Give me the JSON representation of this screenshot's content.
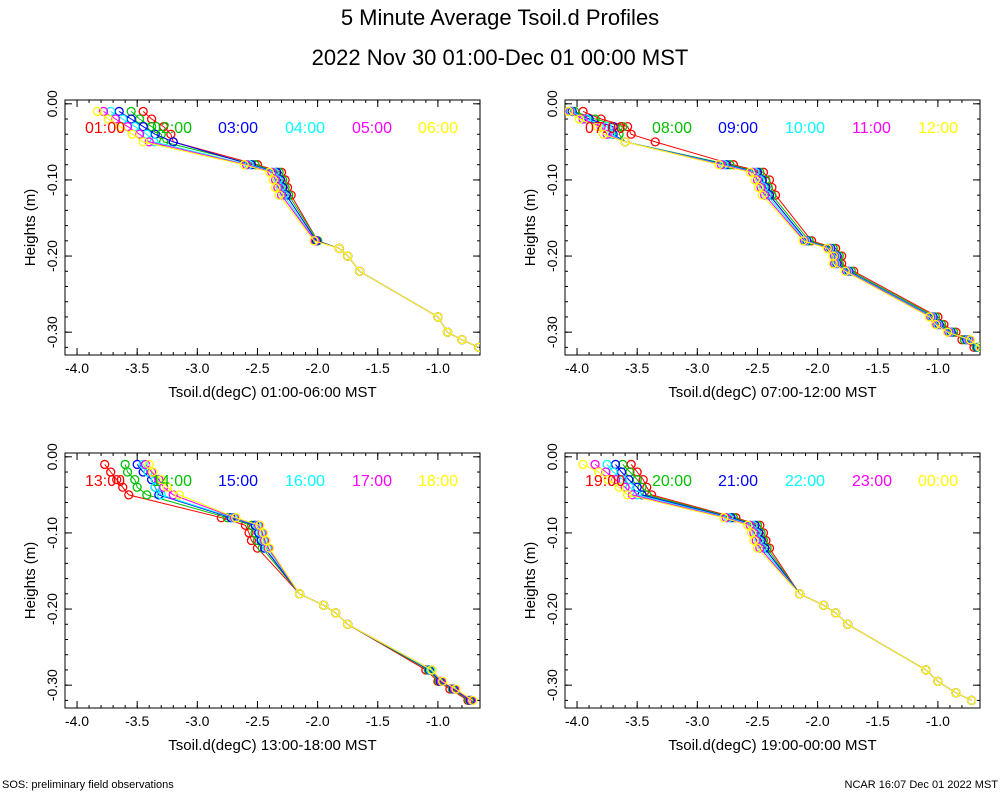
{
  "title": "5 Minute Average Tsoil.d Profiles",
  "subtitle": "2022 Nov 30 01:00-Dec 01 00:00 MST",
  "footer_left": "SOS: preliminary field observations",
  "footer_right": "NCAR 16:07 Dec 01 2022 MST",
  "colors": [
    "#ff0000",
    "#00c000",
    "#0000ff",
    "#00ffff",
    "#ff00ff",
    "#ffff00"
  ],
  "chart_data": [
    {
      "type": "line",
      "xlabel": "Tsoil.d(degC) 01:00-06:00 MST",
      "ylabel": "Heights (m)",
      "xlim": [
        -4.1,
        -0.65
      ],
      "ylim": [
        -0.33,
        0.005
      ],
      "xticks": [
        "-4.0",
        "-3.5",
        "-3.0",
        "-2.5",
        "-2.0",
        "-1.5",
        "-1.0"
      ],
      "yticks": [
        "0.00",
        "-0.10",
        "-0.20",
        "-0.30"
      ],
      "heights": [
        -0.01,
        -0.02,
        -0.03,
        -0.04,
        -0.05,
        -0.08,
        -0.09,
        -0.1,
        -0.11,
        -0.12,
        -0.18,
        -0.19,
        -0.2,
        -0.22,
        -0.28,
        -0.3,
        -0.31,
        -0.32
      ],
      "series": [
        {
          "name": "01:00",
          "x": [
            -3.45,
            -3.38,
            -3.28,
            -3.22,
            -3.2,
            -2.5,
            -2.3,
            -2.27,
            -2.25,
            -2.22,
            -2.0,
            -1.82,
            -1.75,
            -1.65,
            -1.0,
            -0.92,
            -0.8,
            -0.66
          ]
        },
        {
          "name": "02:00",
          "x": [
            -3.55,
            -3.48,
            -3.38,
            -3.3,
            -3.28,
            -2.52,
            -2.32,
            -2.29,
            -2.27,
            -2.24,
            -2.0,
            -1.82,
            -1.75,
            -1.65,
            -1.0,
            -0.92,
            -0.8,
            -0.66
          ]
        },
        {
          "name": "03:00",
          "x": [
            -3.65,
            -3.55,
            -3.45,
            -3.35,
            -3.2,
            -2.55,
            -2.34,
            -2.31,
            -2.29,
            -2.26,
            -2.01,
            -1.82,
            -1.75,
            -1.65,
            -1.0,
            -0.92,
            -0.8,
            -0.66
          ]
        },
        {
          "name": "04:00",
          "x": [
            -3.72,
            -3.62,
            -3.52,
            -3.42,
            -3.36,
            -2.57,
            -2.36,
            -2.33,
            -2.31,
            -2.28,
            -2.02,
            -1.82,
            -1.75,
            -1.65,
            -1.0,
            -0.92,
            -0.8,
            -0.66
          ]
        },
        {
          "name": "05:00",
          "x": [
            -3.78,
            -3.68,
            -3.58,
            -3.48,
            -3.4,
            -2.59,
            -2.38,
            -2.35,
            -2.33,
            -2.3,
            -2.02,
            -1.82,
            -1.75,
            -1.65,
            -1.0,
            -0.92,
            -0.8,
            -0.66
          ]
        },
        {
          "name": "06:00",
          "x": [
            -3.83,
            -3.74,
            -3.64,
            -3.54,
            -3.45,
            -2.61,
            -2.4,
            -2.37,
            -2.35,
            -2.32,
            -2.03,
            -1.82,
            -1.75,
            -1.65,
            -1.0,
            -0.92,
            -0.8,
            -0.66
          ]
        }
      ]
    },
    {
      "type": "line",
      "xlabel": "Tsoil.d(degC) 07:00-12:00 MST",
      "ylabel": "Heights (m)",
      "xlim": [
        -4.1,
        -0.65
      ],
      "ylim": [
        -0.33,
        0.005
      ],
      "xticks": [
        "-4.0",
        "-3.5",
        "-3.0",
        "-2.5",
        "-2.0",
        "-1.5",
        "-1.0"
      ],
      "yticks": [
        "0.00",
        "-0.10",
        "-0.20",
        "-0.30"
      ],
      "heights": [
        -0.01,
        -0.02,
        -0.03,
        -0.04,
        -0.05,
        -0.08,
        -0.09,
        -0.1,
        -0.11,
        -0.12,
        -0.18,
        -0.19,
        -0.2,
        -0.21,
        -0.22,
        -0.28,
        -0.29,
        -0.3,
        -0.31,
        -0.32
      ],
      "series": [
        {
          "name": "07:00",
          "x": [
            -3.95,
            -3.8,
            -3.58,
            -3.55,
            -3.35,
            -2.7,
            -2.45,
            -2.4,
            -2.38,
            -2.35,
            -2.05,
            -1.85,
            -1.8,
            -1.8,
            -1.7,
            -1.0,
            -0.95,
            -0.85,
            -0.8,
            -0.7
          ]
        },
        {
          "name": "08:00",
          "x": [
            -4.02,
            -3.85,
            -3.62,
            -3.65,
            -3.6,
            -2.73,
            -2.48,
            -2.43,
            -2.41,
            -2.38,
            -2.07,
            -1.87,
            -1.82,
            -1.82,
            -1.72,
            -1.02,
            -0.97,
            -0.87,
            -0.78,
            -0.68
          ]
        },
        {
          "name": "09:00",
          "x": [
            -4.04,
            -3.9,
            -3.7,
            -3.7,
            -3.6,
            -2.76,
            -2.5,
            -2.46,
            -2.43,
            -2.4,
            -2.09,
            -1.89,
            -1.84,
            -1.84,
            -1.74,
            -1.04,
            -0.99,
            -0.89,
            -0.76,
            -0.67
          ]
        },
        {
          "name": "10:00",
          "x": [
            -4.05,
            -3.92,
            -3.75,
            -3.72,
            -3.6,
            -2.78,
            -2.52,
            -2.48,
            -2.45,
            -2.42,
            -2.1,
            -1.9,
            -1.85,
            -1.85,
            -1.75,
            -1.05,
            -1.0,
            -0.9,
            -0.75,
            -0.66
          ]
        },
        {
          "name": "11:00",
          "x": [
            -4.06,
            -3.95,
            -3.8,
            -3.75,
            -3.6,
            -2.8,
            -2.54,
            -2.5,
            -2.47,
            -2.44,
            -2.11,
            -1.91,
            -1.86,
            -1.86,
            -1.76,
            -1.06,
            -1.01,
            -0.91,
            -0.74,
            -0.65
          ]
        },
        {
          "name": "12:00",
          "x": [
            -4.07,
            -3.98,
            -3.83,
            -3.78,
            -3.6,
            -2.82,
            -2.56,
            -2.52,
            -2.49,
            -2.46,
            -2.12,
            -1.92,
            -1.87,
            -1.87,
            -1.77,
            -1.07,
            -1.02,
            -0.92,
            -0.73,
            -0.65
          ]
        }
      ]
    },
    {
      "type": "line",
      "xlabel": "Tsoil.d(degC) 13:00-18:00 MST",
      "ylabel": "Heights (m)",
      "xlim": [
        -4.1,
        -0.65
      ],
      "ylim": [
        -0.33,
        0.005
      ],
      "xticks": [
        "-4.0",
        "-3.5",
        "-3.0",
        "-2.5",
        "-2.0",
        "-1.5",
        "-1.0"
      ],
      "yticks": [
        "0.00",
        "-0.10",
        "-0.20",
        "-0.30"
      ],
      "heights": [
        -0.01,
        -0.02,
        -0.03,
        -0.04,
        -0.05,
        -0.08,
        -0.09,
        -0.1,
        -0.11,
        -0.12,
        -0.18,
        -0.195,
        -0.205,
        -0.22,
        -0.28,
        -0.295,
        -0.305,
        -0.32
      ],
      "series": [
        {
          "name": "13:00",
          "x": [
            -3.77,
            -3.72,
            -3.67,
            -3.62,
            -3.57,
            -2.8,
            -2.6,
            -2.57,
            -2.55,
            -2.5,
            -2.15,
            -1.95,
            -1.85,
            -1.75,
            -1.1,
            -1.0,
            -0.9,
            -0.75
          ]
        },
        {
          "name": "14:00",
          "x": [
            -3.6,
            -3.58,
            -3.52,
            -3.5,
            -3.42,
            -2.75,
            -2.55,
            -2.52,
            -2.5,
            -2.46,
            -2.15,
            -1.95,
            -1.85,
            -1.75,
            -1.08,
            -0.99,
            -0.88,
            -0.74
          ]
        },
        {
          "name": "15:00",
          "x": [
            -3.5,
            -3.45,
            -3.38,
            -3.35,
            -3.32,
            -2.72,
            -2.52,
            -2.49,
            -2.47,
            -2.44,
            -2.15,
            -1.95,
            -1.85,
            -1.75,
            -1.07,
            -0.98,
            -0.87,
            -0.73
          ]
        },
        {
          "name": "16:00",
          "x": [
            -3.45,
            -3.41,
            -3.35,
            -3.35,
            -3.3,
            -2.7,
            -2.5,
            -2.47,
            -2.45,
            -2.42,
            -2.15,
            -1.95,
            -1.85,
            -1.75,
            -1.06,
            -0.97,
            -0.86,
            -0.72
          ]
        },
        {
          "name": "17:00",
          "x": [
            -3.43,
            -3.38,
            -3.32,
            -3.28,
            -3.2,
            -2.69,
            -2.49,
            -2.46,
            -2.44,
            -2.41,
            -2.15,
            -1.95,
            -1.85,
            -1.75,
            -1.05,
            -0.97,
            -0.86,
            -0.72
          ]
        },
        {
          "name": "18:00",
          "x": [
            -3.4,
            -3.37,
            -3.3,
            -3.25,
            -3.15,
            -2.68,
            -2.48,
            -2.45,
            -2.43,
            -2.4,
            -2.15,
            -1.95,
            -1.85,
            -1.75,
            -1.05,
            -0.96,
            -0.85,
            -0.71
          ]
        }
      ]
    },
    {
      "type": "line",
      "xlabel": "Tsoil.d(degC) 19:00-00:00 MST",
      "ylabel": "Heights (m)",
      "xlim": [
        -4.1,
        -0.65
      ],
      "ylim": [
        -0.33,
        0.005
      ],
      "xticks": [
        "-4.0",
        "-3.5",
        "-3.0",
        "-2.5",
        "-2.0",
        "-1.5",
        "-1.0"
      ],
      "yticks": [
        "0.00",
        "-0.10",
        "-0.20",
        "-0.30"
      ],
      "heights": [
        -0.01,
        -0.02,
        -0.03,
        -0.04,
        -0.05,
        -0.08,
        -0.09,
        -0.1,
        -0.11,
        -0.12,
        -0.18,
        -0.195,
        -0.205,
        -0.22,
        -0.28,
        -0.295,
        -0.31,
        -0.32
      ],
      "series": [
        {
          "name": "19:00",
          "x": [
            -3.55,
            -3.5,
            -3.45,
            -3.42,
            -3.38,
            -2.68,
            -2.48,
            -2.45,
            -2.43,
            -2.4,
            -2.15,
            -1.95,
            -1.85,
            -1.75,
            -1.1,
            -1.0,
            -0.85,
            -0.72
          ]
        },
        {
          "name": "20:00",
          "x": [
            -3.62,
            -3.56,
            -3.5,
            -3.46,
            -3.42,
            -2.7,
            -2.5,
            -2.47,
            -2.45,
            -2.42,
            -2.15,
            -1.95,
            -1.85,
            -1.75,
            -1.1,
            -1.0,
            -0.85,
            -0.72
          ]
        },
        {
          "name": "21:00",
          "x": [
            -3.68,
            -3.63,
            -3.57,
            -3.5,
            -3.46,
            -2.72,
            -2.52,
            -2.49,
            -2.47,
            -2.44,
            -2.15,
            -1.95,
            -1.85,
            -1.75,
            -1.1,
            -1.0,
            -0.85,
            -0.72
          ]
        },
        {
          "name": "22:00",
          "x": [
            -3.75,
            -3.7,
            -3.62,
            -3.56,
            -3.5,
            -2.74,
            -2.54,
            -2.51,
            -2.49,
            -2.46,
            -2.15,
            -1.95,
            -1.85,
            -1.75,
            -1.1,
            -1.0,
            -0.85,
            -0.72
          ]
        },
        {
          "name": "23:00",
          "x": [
            -3.85,
            -3.76,
            -3.68,
            -3.6,
            -3.54,
            -2.76,
            -2.56,
            -2.53,
            -2.51,
            -2.48,
            -2.15,
            -1.95,
            -1.85,
            -1.75,
            -1.1,
            -1.0,
            -0.85,
            -0.72
          ]
        },
        {
          "name": "00:00",
          "x": [
            -3.95,
            -3.82,
            -3.74,
            -3.65,
            -3.58,
            -2.78,
            -2.58,
            -2.55,
            -2.53,
            -2.5,
            -2.15,
            -1.95,
            -1.85,
            -1.75,
            -1.1,
            -1.0,
            -0.85,
            -0.72
          ]
        }
      ]
    }
  ]
}
